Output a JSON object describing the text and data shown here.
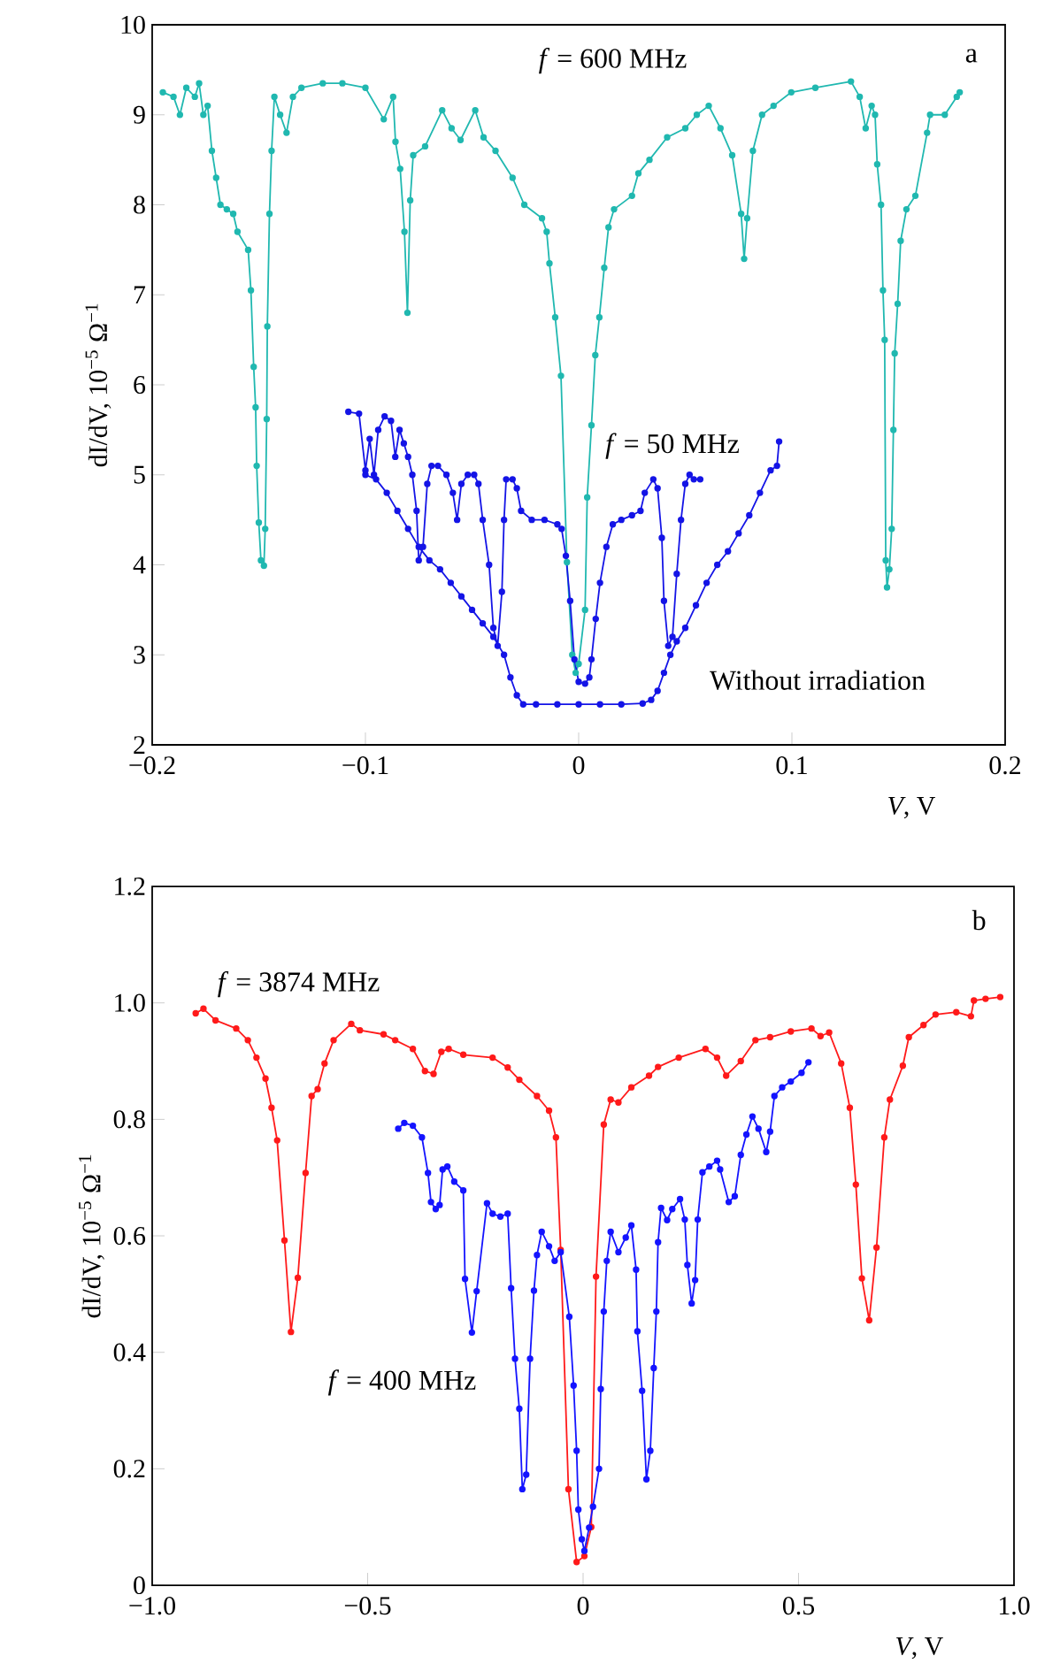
{
  "chart_data": [
    {
      "type": "line",
      "xlabel": "*V*, V",
      "ylabel": "dI/dV, 10$^{−5}$ Ω$^{−1}$",
      "annotations": [
        "a"
      ],
      "marker": "circle",
      "line_style": "solid",
      "grid": false,
      "legend": false,
      "xlim": [
        -0.2,
        0.2
      ],
      "xticks": [
        {
          "value": -0.2,
          "label": "−0.2"
        },
        {
          "value": -0.1,
          "label": "−0.1"
        },
        0,
        0.1,
        0.2
      ],
      "ylim": [
        2,
        10
      ],
      "yticks": [
        2,
        3,
        4,
        5,
        6,
        7,
        8,
        9,
        10
      ],
      "series": [
        {
          "name": "*f* = 600 MHz",
          "color": "#20b8b0",
          "x": [
            -0.195,
            -0.19,
            -0.187,
            -0.184,
            -0.18,
            -0.178,
            -0.176,
            -0.174,
            -0.172,
            -0.17,
            -0.168,
            -0.165,
            -0.162,
            -0.16,
            -0.155,
            -0.1537,
            -0.1524,
            -0.1515,
            -0.151,
            -0.15,
            -0.149,
            -0.1476,
            -0.147,
            -0.1463,
            -0.146,
            -0.145,
            -0.144,
            -0.1427,
            -0.14,
            -0.137,
            -0.134,
            -0.13,
            -0.12,
            -0.1108,
            -0.1,
            -0.0914,
            -0.087,
            -0.0859,
            -0.0837,
            -0.0817,
            -0.0803,
            -0.079,
            -0.0776,
            -0.072,
            -0.064,
            -0.0596,
            -0.0554,
            -0.0485,
            -0.0446,
            -0.039,
            -0.031,
            -0.0255,
            -0.0172,
            -0.015,
            -0.0137,
            -0.011,
            -0.0083,
            -0.0055,
            -0.003,
            -0.0014,
            0,
            0.003,
            0.004,
            0.006,
            0.0078,
            0.0097,
            0.012,
            0.014,
            0.0166,
            0.025,
            0.028,
            0.0332,
            0.0415,
            0.05,
            0.0554,
            0.061,
            0.0665,
            0.072,
            0.0762,
            0.0776,
            0.079,
            0.0817,
            0.086,
            0.0914,
            0.0997,
            0.111,
            0.1277,
            0.1318,
            0.1346,
            0.1374,
            0.139,
            0.14,
            0.1418,
            0.1427,
            0.1435,
            0.144,
            0.1446,
            0.1457,
            0.1468,
            0.1476,
            0.1482,
            0.1496,
            0.151,
            0.1537,
            0.1579,
            0.1634,
            0.1648,
            0.1717,
            0.1773,
            0.1787
          ],
          "values": [
            9.25,
            9.2,
            9.0,
            9.3,
            9.2,
            9.35,
            9.0,
            9.1,
            8.6,
            8.3,
            8.0,
            7.95,
            7.9,
            7.7,
            7.5,
            7.05,
            6.2,
            5.75,
            5.1,
            4.47,
            4.05,
            3.99,
            4.4,
            5.62,
            6.65,
            7.9,
            8.6,
            9.2,
            9.0,
            8.8,
            9.2,
            9.3,
            9.35,
            9.35,
            9.3,
            8.95,
            9.2,
            8.7,
            8.4,
            7.7,
            6.8,
            8.05,
            8.55,
            8.65,
            9.05,
            8.85,
            8.72,
            9.05,
            8.75,
            8.6,
            8.3,
            8.0,
            7.85,
            7.7,
            7.35,
            6.75,
            6.1,
            4.03,
            3.0,
            2.8,
            2.9,
            3.5,
            4.75,
            5.55,
            6.33,
            6.75,
            7.3,
            7.75,
            7.95,
            8.1,
            8.35,
            8.5,
            8.75,
            8.85,
            9.0,
            9.1,
            8.85,
            8.55,
            7.9,
            7.4,
            7.85,
            8.6,
            9.0,
            9.1,
            9.25,
            9.3,
            9.37,
            9.2,
            8.85,
            9.1,
            9.0,
            8.45,
            8.0,
            7.05,
            6.5,
            4.05,
            3.75,
            3.95,
            4.4,
            5.5,
            6.35,
            6.9,
            7.6,
            7.95,
            8.1,
            8.8,
            9.0,
            9.0,
            9.2,
            9.25
          ]
        },
        {
          "name": "*f* = 50 MHz",
          "color": "#1414e6",
          "x": [
            -0.108,
            -0.103,
            -0.1,
            -0.098,
            -0.096,
            -0.094,
            -0.091,
            -0.088,
            -0.086,
            -0.084,
            -0.082,
            -0.08,
            -0.078,
            -0.076,
            -0.075,
            -0.073,
            -0.071,
            -0.069,
            -0.066,
            -0.062,
            -0.059,
            -0.057,
            -0.055,
            -0.052,
            -0.049,
            -0.047,
            -0.045,
            -0.042,
            -0.04,
            -0.038,
            -0.036,
            -0.035,
            -0.034,
            -0.031,
            -0.029,
            -0.027,
            -0.022,
            -0.016,
            -0.01,
            -0.008,
            -0.006,
            -0.004,
            -0.002,
            0,
            0.003,
            0.005,
            0.006,
            0.008,
            0.01,
            0.013,
            0.016,
            0.02,
            0.025,
            0.029,
            0.031,
            0.035,
            0.037,
            0.039,
            0.04,
            0.042,
            0.044,
            0.046,
            0.048,
            0.05,
            0.052,
            0.054,
            0.057
          ],
          "values": [
            5.7,
            5.68,
            5.05,
            5.4,
            5.0,
            5.5,
            5.65,
            5.6,
            5.2,
            5.5,
            5.35,
            5.2,
            5.0,
            4.6,
            4.05,
            4.2,
            4.9,
            5.1,
            5.1,
            5.0,
            4.8,
            4.5,
            4.9,
            5.0,
            5.0,
            4.9,
            4.5,
            4.0,
            3.3,
            3.1,
            3.7,
            4.5,
            4.95,
            4.95,
            4.85,
            4.6,
            4.5,
            4.5,
            4.45,
            4.4,
            4.1,
            3.6,
            2.95,
            2.7,
            2.68,
            2.75,
            2.95,
            3.4,
            3.8,
            4.2,
            4.45,
            4.5,
            4.55,
            4.6,
            4.8,
            4.95,
            4.85,
            4.3,
            3.6,
            3.1,
            3.2,
            3.9,
            4.5,
            4.9,
            5.0,
            4.95,
            4.95
          ]
        },
        {
          "name": "Without irradiation",
          "color": "#1414e6",
          "x": [
            -0.1,
            -0.095,
            -0.09,
            -0.085,
            -0.08,
            -0.075,
            -0.07,
            -0.065,
            -0.06,
            -0.055,
            -0.05,
            -0.045,
            -0.04,
            -0.035,
            -0.032,
            -0.029,
            -0.026,
            -0.02,
            -0.01,
            0,
            0.01,
            0.02,
            0.03,
            0.034,
            0.037,
            0.04,
            0.043,
            0.046,
            0.05,
            0.055,
            0.06,
            0.065,
            0.07,
            0.075,
            0.08,
            0.085,
            0.09,
            0.093,
            0.094
          ],
          "values": [
            5.0,
            4.95,
            4.8,
            4.6,
            4.4,
            4.2,
            4.05,
            3.95,
            3.8,
            3.65,
            3.5,
            3.35,
            3.2,
            3.0,
            2.75,
            2.55,
            2.45,
            2.45,
            2.45,
            2.45,
            2.45,
            2.45,
            2.46,
            2.5,
            2.6,
            2.8,
            3.0,
            3.15,
            3.3,
            3.55,
            3.8,
            4.0,
            4.15,
            4.35,
            4.55,
            4.8,
            5.05,
            5.1,
            5.37
          ]
        }
      ]
    },
    {
      "type": "line",
      "xlabel": "*V*, V",
      "ylabel": "dI/dV, 10$^{−5}$ Ω$^{−1}$",
      "annotations": [
        "b"
      ],
      "marker": "circle",
      "line_style": "solid",
      "grid": false,
      "legend": false,
      "xlim": [
        -1,
        1
      ],
      "xticks": [
        {
          "value": -1,
          "label": "−1.0"
        },
        {
          "value": -0.5,
          "label": "−0.5"
        },
        0,
        0.5,
        {
          "value": 1,
          "label": "1.0"
        }
      ],
      "ylim": [
        0,
        1.2
      ],
      "yticks": [
        0,
        0.2,
        0.4,
        0.6,
        0.8,
        {
          "value": 1,
          "label": "1.0"
        },
        1.2
      ],
      "series": [
        {
          "name": "*f* = 3874 MHz",
          "color": "#ff1a1a",
          "x": [
            -0.899,
            -0.881,
            -0.853,
            -0.805,
            -0.778,
            -0.758,
            -0.737,
            -0.723,
            -0.71,
            -0.693,
            -0.678,
            -0.662,
            -0.644,
            -0.63,
            -0.616,
            -0.6,
            -0.579,
            -0.538,
            -0.518,
            -0.463,
            -0.436,
            -0.395,
            -0.367,
            -0.347,
            -0.329,
            -0.312,
            -0.278,
            -0.21,
            -0.175,
            -0.148,
            -0.107,
            -0.079,
            -0.063,
            -0.052,
            -0.034,
            -0.015,
            0.003,
            0.019,
            0.03,
            0.048,
            0.064,
            0.082,
            0.112,
            0.153,
            0.174,
            0.222,
            0.284,
            0.311,
            0.332,
            0.366,
            0.4,
            0.434,
            0.482,
            0.53,
            0.551,
            0.571,
            0.599,
            0.619,
            0.633,
            0.647,
            0.664,
            0.681,
            0.699,
            0.712,
            0.742,
            0.756,
            0.79,
            0.818,
            0.866,
            0.9,
            0.907,
            0.934,
            0.968
          ],
          "values": [
            0.982,
            0.99,
            0.97,
            0.956,
            0.936,
            0.906,
            0.87,
            0.82,
            0.764,
            0.592,
            0.435,
            0.528,
            0.708,
            0.84,
            0.852,
            0.896,
            0.936,
            0.964,
            0.953,
            0.946,
            0.936,
            0.921,
            0.883,
            0.878,
            0.916,
            0.921,
            0.911,
            0.906,
            0.889,
            0.868,
            0.84,
            0.815,
            0.769,
            0.576,
            0.165,
            0.04,
            0.05,
            0.1,
            0.53,
            0.791,
            0.834,
            0.829,
            0.855,
            0.875,
            0.89,
            0.906,
            0.921,
            0.906,
            0.875,
            0.9,
            0.936,
            0.941,
            0.951,
            0.956,
            0.943,
            0.949,
            0.896,
            0.82,
            0.688,
            0.527,
            0.455,
            0.58,
            0.769,
            0.834,
            0.892,
            0.941,
            0.962,
            0.98,
            0.984,
            0.977,
            1.004,
            1.007,
            1.01
          ]
        },
        {
          "name": "*f* = 400 MHz",
          "color": "#1414ff",
          "x": [
            -0.429,
            -0.415,
            -0.395,
            -0.374,
            -0.36,
            -0.353,
            -0.342,
            -0.333,
            -0.326,
            -0.315,
            -0.299,
            -0.278,
            -0.274,
            -0.258,
            -0.247,
            -0.223,
            -0.21,
            -0.192,
            -0.175,
            -0.167,
            -0.158,
            -0.148,
            -0.141,
            -0.132,
            -0.123,
            -0.114,
            -0.107,
            -0.096,
            -0.079,
            -0.066,
            -0.052,
            -0.032,
            -0.022,
            -0.015,
            -0.011,
            -0.003,
            0.003,
            0.014,
            0.023,
            0.037,
            0.041,
            0.048,
            0.055,
            0.064,
            0.082,
            0.099,
            0.112,
            0.123,
            0.126,
            0.137,
            0.147,
            0.156,
            0.164,
            0.17,
            0.174,
            0.181,
            0.195,
            0.207,
            0.225,
            0.236,
            0.242,
            0.252,
            0.26,
            0.266,
            0.277,
            0.293,
            0.311,
            0.318,
            0.338,
            0.352,
            0.366,
            0.379,
            0.393,
            0.407,
            0.425,
            0.434,
            0.444,
            0.462,
            0.482,
            0.507,
            0.523
          ],
          "values": [
            0.784,
            0.794,
            0.789,
            0.769,
            0.708,
            0.658,
            0.646,
            0.653,
            0.714,
            0.719,
            0.693,
            0.678,
            0.526,
            0.434,
            0.505,
            0.656,
            0.638,
            0.633,
            0.638,
            0.51,
            0.389,
            0.303,
            0.165,
            0.19,
            0.389,
            0.506,
            0.567,
            0.607,
            0.582,
            0.557,
            0.572,
            0.461,
            0.343,
            0.231,
            0.13,
            0.079,
            0.059,
            0.099,
            0.135,
            0.2,
            0.337,
            0.47,
            0.557,
            0.607,
            0.572,
            0.597,
            0.618,
            0.542,
            0.436,
            0.334,
            0.182,
            0.231,
            0.373,
            0.47,
            0.589,
            0.648,
            0.627,
            0.646,
            0.663,
            0.628,
            0.55,
            0.484,
            0.524,
            0.628,
            0.709,
            0.719,
            0.729,
            0.714,
            0.658,
            0.668,
            0.739,
            0.774,
            0.805,
            0.784,
            0.744,
            0.779,
            0.84,
            0.855,
            0.865,
            0.88,
            0.898
          ]
        }
      ]
    }
  ]
}
